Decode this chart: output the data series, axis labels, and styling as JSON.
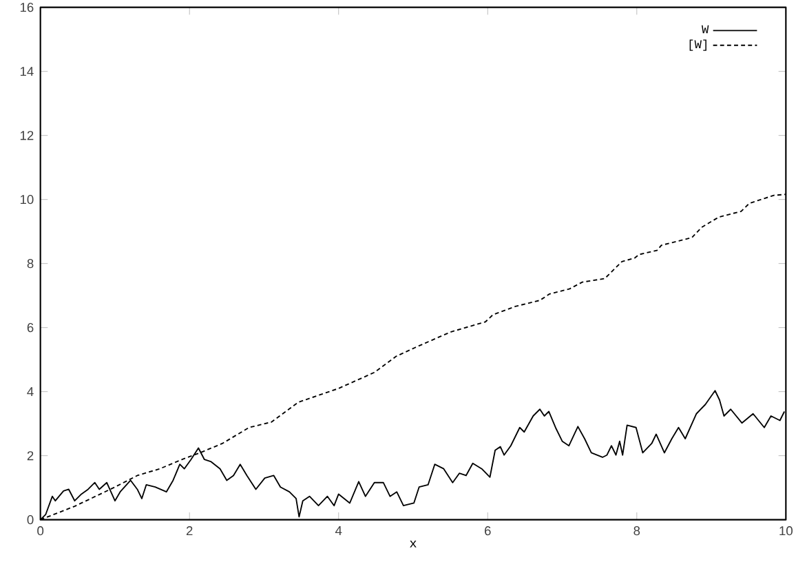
{
  "chart_data": {
    "type": "line",
    "xlabel": "x",
    "xlim": [
      0,
      10
    ],
    "ylim": [
      0,
      16
    ],
    "xticks": [
      0,
      2,
      4,
      6,
      8,
      10
    ],
    "yticks": [
      0,
      2,
      4,
      6,
      8,
      10,
      12,
      14,
      16
    ],
    "legend": "top right",
    "marker": "none",
    "grid": false,
    "series": [
      {
        "name": "W",
        "color": "#000000",
        "line_style": "solid",
        "x": [
          0,
          0.07,
          0.16,
          0.2,
          0.31,
          0.38,
          0.46,
          0.55,
          0.64,
          0.73,
          0.79,
          0.89,
          1.0,
          1.07,
          1.21,
          1.3,
          1.36,
          1.42,
          1.54,
          1.69,
          1.78,
          1.87,
          1.93,
          2.02,
          2.12,
          2.2,
          2.29,
          2.41,
          2.5,
          2.59,
          2.68,
          2.77,
          2.89,
          3.01,
          3.13,
          3.22,
          3.34,
          3.43,
          3.47,
          3.52,
          3.61,
          3.73,
          3.85,
          3.94,
          4.0,
          4.15,
          4.27,
          4.36,
          4.48,
          4.6,
          4.69,
          4.78,
          4.87,
          5.01,
          5.08,
          5.2,
          5.29,
          5.41,
          5.53,
          5.62,
          5.71,
          5.8,
          5.92,
          6.03,
          6.1,
          6.17,
          6.22,
          6.31,
          6.43,
          6.49,
          6.61,
          6.7,
          6.76,
          6.82,
          6.91,
          7.0,
          7.09,
          7.21,
          7.3,
          7.39,
          7.54,
          7.6,
          7.66,
          7.72,
          7.77,
          7.81,
          7.87,
          7.99,
          8.08,
          8.2,
          8.26,
          8.37,
          8.47,
          8.56,
          8.65,
          8.8,
          8.92,
          9.05,
          9.11,
          9.17,
          9.26,
          9.41,
          9.56,
          9.71,
          9.8,
          9.92,
          9.98
        ],
        "values": [
          0,
          0.16,
          0.73,
          0.59,
          0.9,
          0.95,
          0.59,
          0.8,
          0.95,
          1.16,
          0.95,
          1.16,
          0.59,
          0.87,
          1.23,
          0.95,
          0.66,
          1.09,
          1.02,
          0.87,
          1.23,
          1.73,
          1.59,
          1.88,
          2.24,
          1.88,
          1.81,
          1.59,
          1.23,
          1.38,
          1.73,
          1.38,
          0.95,
          1.3,
          1.38,
          1.02,
          0.87,
          0.66,
          0.09,
          0.59,
          0.73,
          0.44,
          0.73,
          0.44,
          0.8,
          0.52,
          1.19,
          0.73,
          1.16,
          1.16,
          0.73,
          0.87,
          0.44,
          0.52,
          1.02,
          1.09,
          1.73,
          1.59,
          1.16,
          1.45,
          1.38,
          1.76,
          1.59,
          1.33,
          2.17,
          2.28,
          2.02,
          2.31,
          2.88,
          2.74,
          3.24,
          3.45,
          3.24,
          3.38,
          2.88,
          2.45,
          2.31,
          2.91,
          2.53,
          2.09,
          1.95,
          2.02,
          2.31,
          2.02,
          2.45,
          2.02,
          2.95,
          2.88,
          2.09,
          2.38,
          2.67,
          2.09,
          2.53,
          2.88,
          2.53,
          3.31,
          3.6,
          4.03,
          3.74,
          3.24,
          3.45,
          3.02,
          3.31,
          2.88,
          3.24,
          3.1,
          3.38
        ]
      },
      {
        "name": "[W]",
        "color": "#000000",
        "line_style": "dashed",
        "x": [
          0,
          0.46,
          1.0,
          1.3,
          1.6,
          1.9,
          2.14,
          2.44,
          2.8,
          3.1,
          3.46,
          4.0,
          4.48,
          4.77,
          5.03,
          5.5,
          5.97,
          6.07,
          6.37,
          6.7,
          6.83,
          7.1,
          7.27,
          7.57,
          7.8,
          7.97,
          8.03,
          8.27,
          8.33,
          8.74,
          8.87,
          9.1,
          9.4,
          9.51,
          9.84,
          10.0
        ],
        "values": [
          0,
          0.42,
          1.02,
          1.38,
          1.59,
          1.88,
          2.09,
          2.38,
          2.88,
          3.05,
          3.67,
          4.1,
          4.6,
          5.1,
          5.38,
          5.86,
          6.18,
          6.4,
          6.66,
          6.85,
          7.05,
          7.21,
          7.42,
          7.53,
          8.06,
          8.17,
          8.28,
          8.41,
          8.57,
          8.81,
          9.13,
          9.45,
          9.63,
          9.88,
          10.13,
          10.16
        ]
      }
    ]
  }
}
